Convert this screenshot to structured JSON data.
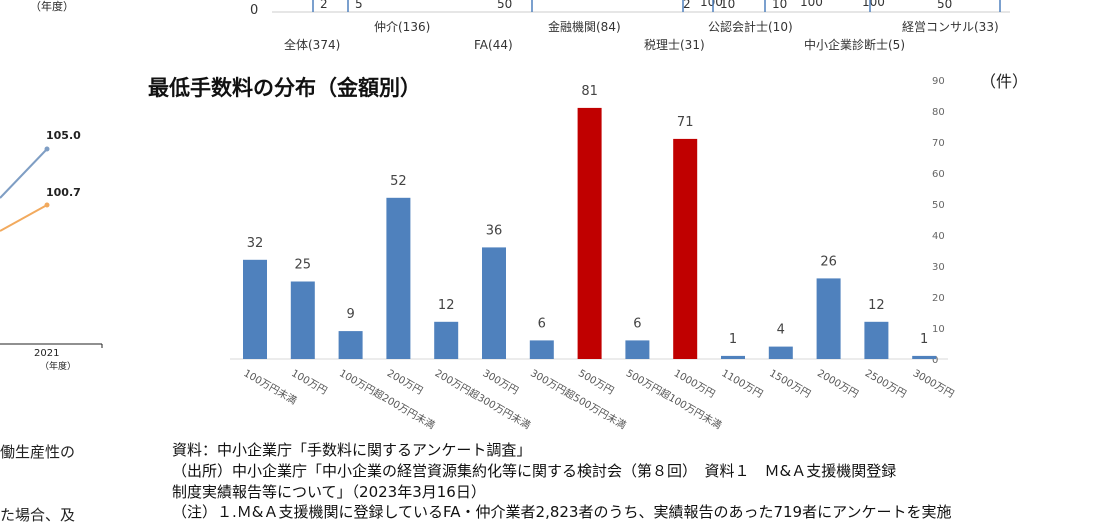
{
  "top_strip": {
    "axis_zero": "0",
    "box_values": [
      "2",
      "5",
      "50",
      "10",
      "2",
      "100",
      "10",
      "100",
      "100",
      "50"
    ],
    "categories": [
      "全体(374)",
      "仲介(136)",
      "FA(44)",
      "金融機関(84)",
      "税理士(31)",
      "公認会計士(10)",
      "中小企業診断士(5)",
      "経営コンサル(33)"
    ]
  },
  "left_strip": {
    "top_unit": "（年度）",
    "labels": [
      "105.0",
      "100.7"
    ],
    "x_tick": "2021",
    "x_unit": "（年度）",
    "series_colors": [
      "#7f9ec4",
      "#f2aa5e"
    ],
    "text_fragments": [
      "働生産性の",
      "た場合、及"
    ]
  },
  "chart_data": {
    "type": "bar",
    "title": "最低手数料の分布（金額別）",
    "ylabel": "（件）",
    "ylim": [
      0,
      90
    ],
    "yticks": [
      0,
      10,
      20,
      30,
      40,
      50,
      60,
      70,
      80,
      90
    ],
    "y_axis_position": "right",
    "grid": false,
    "categories": [
      "100万円未満",
      "100万円",
      "100万円超200万円未満",
      "200万円",
      "200万円超300万円未満",
      "300万円",
      "300万円超500万円未満",
      "500万円",
      "500万円超100万円未満",
      "1000万円",
      "1100万円",
      "1500万円",
      "2000万円",
      "2500万円",
      "3000万円"
    ],
    "values": [
      32,
      25,
      9,
      52,
      12,
      36,
      6,
      81,
      6,
      71,
      1,
      4,
      26,
      12,
      1
    ],
    "highlighted": [
      7,
      9
    ],
    "colors": {
      "default": "#4f81bd",
      "highlight": "#c00000"
    }
  },
  "source": {
    "lines": [
      "資料：中小企業庁「手数料に関するアンケート調査」",
      "（出所）中小企業庁「中小企業の経営資源集約化等に関する検討会（第８回）　資料１　Ｍ&Ａ支援機関登録",
      "制度実績報告等について」（2023年3月16日）",
      "（注）１.Ｍ&Ａ支援機関に登録しているFA・仲介業者2,823者のうち、実績報告のあった719者にアンケートを実施"
    ]
  }
}
